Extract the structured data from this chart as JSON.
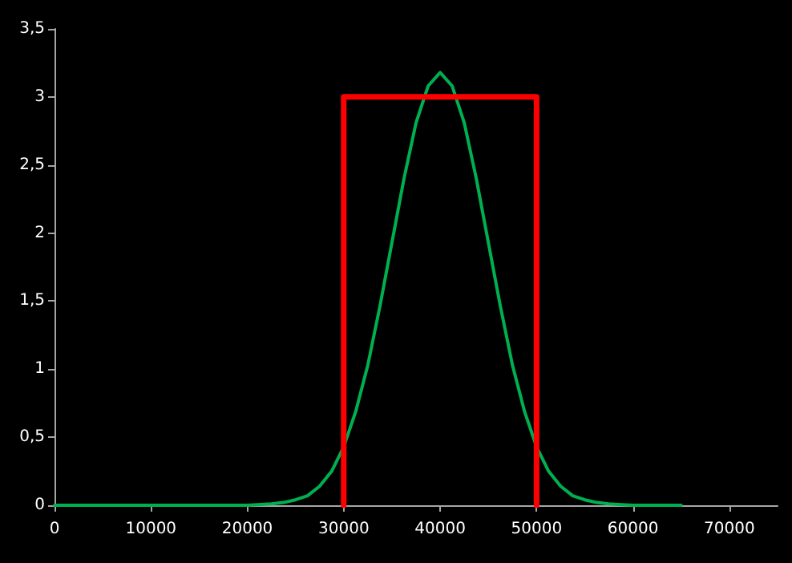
{
  "chart_data": {
    "type": "line",
    "xlim": [
      0,
      75000
    ],
    "xticks": [
      0,
      10000,
      20000,
      30000,
      40000,
      50000,
      60000,
      70000
    ],
    "ylim": [
      0,
      3.5
    ],
    "yticks": [
      0,
      {
        "value": 0.5,
        "label": "0,5"
      },
      1,
      {
        "value": 1.5,
        "label": "1,5"
      },
      2,
      {
        "value": 2.5,
        "label": "2,5"
      },
      3,
      {
        "value": 3.5,
        "label": "3,5"
      }
    ],
    "grid": false,
    "marker": "none",
    "line_style": "solid",
    "series": [
      {
        "color": "#00b050",
        "x": [
          0,
          10000,
          20000,
          22500,
          23750,
          25000,
          26250,
          27500,
          28750,
          30000,
          31250,
          32500,
          33750,
          35000,
          36250,
          37500,
          38750,
          40000,
          41250,
          42500,
          43750,
          45000,
          46250,
          47500,
          48750,
          50000,
          51250,
          52500,
          53750,
          55000,
          56250,
          57500,
          60000,
          65000
        ],
        "values": [
          0,
          0,
          0,
          0.01,
          0.02,
          0.04,
          0.07,
          0.14,
          0.25,
          0.43,
          0.69,
          1.03,
          1.46,
          1.93,
          2.4,
          2.81,
          3.08,
          3.18,
          3.08,
          2.81,
          2.4,
          1.93,
          1.46,
          1.03,
          0.69,
          0.43,
          0.25,
          0.14,
          0.07,
          0.04,
          0.02,
          0.01,
          0,
          0
        ]
      },
      {
        "color": "#ff0000",
        "x": [
          30000,
          30000,
          50000,
          50000
        ],
        "values": [
          0,
          3,
          3,
          0
        ]
      }
    ]
  }
}
